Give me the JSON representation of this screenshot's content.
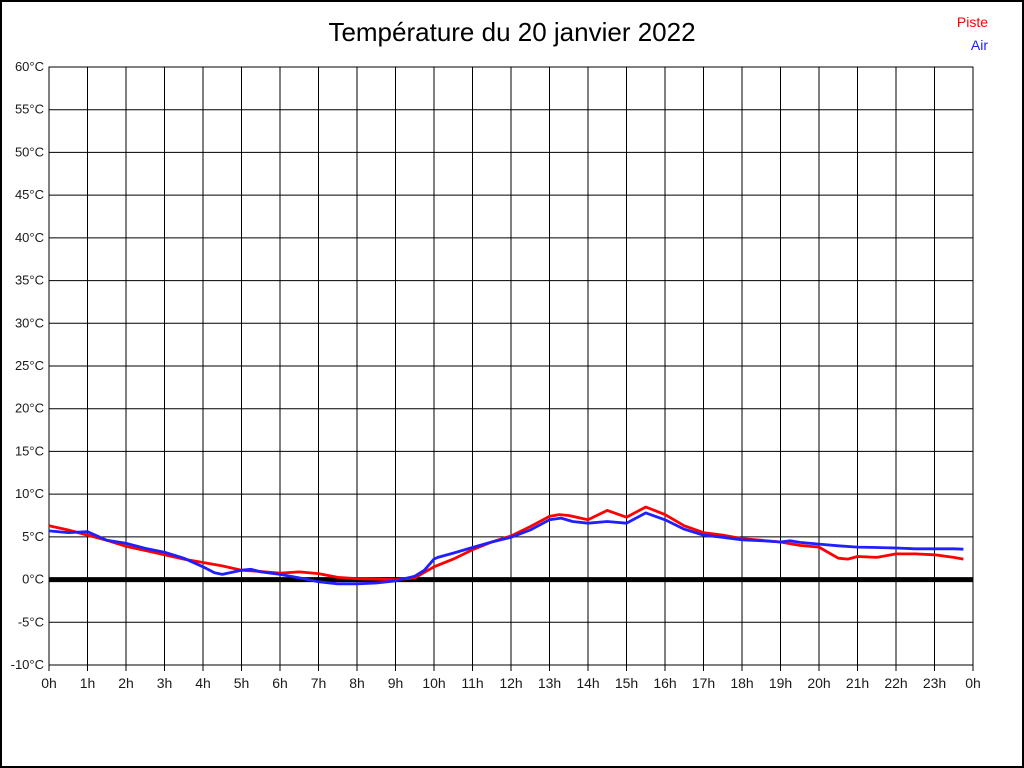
{
  "chart_data": {
    "type": "line",
    "title": "Température du 20 janvier 2022",
    "grid": "on",
    "legend_position": "top-right",
    "zero_line": true,
    "x_axis": {
      "unit": "h",
      "range": [
        0,
        24
      ],
      "tick_labels": [
        "0h",
        "1h",
        "2h",
        "3h",
        "4h",
        "5h",
        "6h",
        "7h",
        "8h",
        "9h",
        "10h",
        "11h",
        "12h",
        "13h",
        "14h",
        "15h",
        "16h",
        "17h",
        "18h",
        "19h",
        "20h",
        "21h",
        "22h",
        "23h",
        "0h"
      ]
    },
    "y_axis": {
      "unit": "°C",
      "range": [
        -10,
        60
      ],
      "step": 5,
      "tick_labels": [
        "60°C",
        "55°C",
        "50°C",
        "45°C",
        "40°C",
        "35°C",
        "30°C",
        "25°C",
        "20°C",
        "15°C",
        "10°C",
        "5°C",
        "0°C",
        "-5°C",
        "-10°C"
      ]
    },
    "series": [
      {
        "name": "Piste",
        "color": "#ff0000",
        "points": [
          [
            0,
            6.3
          ],
          [
            0.5,
            5.8
          ],
          [
            1,
            5.2
          ],
          [
            1.5,
            4.6
          ],
          [
            2,
            3.9
          ],
          [
            2.5,
            3.4
          ],
          [
            3,
            2.9
          ],
          [
            3.5,
            2.4
          ],
          [
            4,
            2.0
          ],
          [
            4.5,
            1.6
          ],
          [
            5,
            1.1
          ],
          [
            5.5,
            0.95
          ],
          [
            6,
            0.75
          ],
          [
            6.5,
            0.9
          ],
          [
            7,
            0.7
          ],
          [
            7.5,
            0.25
          ],
          [
            8,
            0.1
          ],
          [
            8.5,
            0.05
          ],
          [
            9,
            0.0
          ],
          [
            9.5,
            0.2
          ],
          [
            10,
            1.5
          ],
          [
            10.5,
            2.4
          ],
          [
            11,
            3.5
          ],
          [
            11.5,
            4.4
          ],
          [
            12,
            5.1
          ],
          [
            12.5,
            6.2
          ],
          [
            13,
            7.4
          ],
          [
            13.25,
            7.6
          ],
          [
            13.5,
            7.5
          ],
          [
            14,
            7.0
          ],
          [
            14.5,
            8.1
          ],
          [
            15,
            7.3
          ],
          [
            15.5,
            8.5
          ],
          [
            16,
            7.6
          ],
          [
            16.5,
            6.3
          ],
          [
            17,
            5.5
          ],
          [
            17.5,
            5.2
          ],
          [
            18,
            4.8
          ],
          [
            18.5,
            4.6
          ],
          [
            19,
            4.4
          ],
          [
            19.5,
            4.0
          ],
          [
            20,
            3.8
          ],
          [
            20.5,
            2.5
          ],
          [
            20.75,
            2.4
          ],
          [
            21,
            2.7
          ],
          [
            21.5,
            2.6
          ],
          [
            22,
            3.0
          ],
          [
            22.5,
            3.0
          ],
          [
            23,
            2.9
          ],
          [
            23.5,
            2.6
          ],
          [
            23.75,
            2.4
          ]
        ]
      },
      {
        "name": "Air",
        "color": "#2020ff",
        "points": [
          [
            0,
            5.7
          ],
          [
            0.5,
            5.5
          ],
          [
            1,
            5.6
          ],
          [
            1.5,
            4.6
          ],
          [
            2,
            4.25
          ],
          [
            2.5,
            3.65
          ],
          [
            3,
            3.2
          ],
          [
            3.5,
            2.5
          ],
          [
            4,
            1.5
          ],
          [
            4.3,
            0.8
          ],
          [
            4.5,
            0.6
          ],
          [
            5,
            1.1
          ],
          [
            5.25,
            1.2
          ],
          [
            5.5,
            0.9
          ],
          [
            6,
            0.6
          ],
          [
            6.5,
            0.2
          ],
          [
            7,
            -0.25
          ],
          [
            7.5,
            -0.5
          ],
          [
            8,
            -0.5
          ],
          [
            8.5,
            -0.4
          ],
          [
            9,
            -0.15
          ],
          [
            9.5,
            0.4
          ],
          [
            9.75,
            1.1
          ],
          [
            10,
            2.4
          ],
          [
            10.1,
            2.6
          ],
          [
            10.5,
            3.1
          ],
          [
            11,
            3.75
          ],
          [
            11.5,
            4.4
          ],
          [
            12,
            4.95
          ],
          [
            12.5,
            5.8
          ],
          [
            13,
            7.0
          ],
          [
            13.3,
            7.2
          ],
          [
            13.6,
            6.8
          ],
          [
            14,
            6.6
          ],
          [
            14.5,
            6.8
          ],
          [
            15,
            6.6
          ],
          [
            15.5,
            7.8
          ],
          [
            16,
            7.0
          ],
          [
            16.5,
            5.9
          ],
          [
            17,
            5.2
          ],
          [
            17.5,
            4.95
          ],
          [
            18,
            4.65
          ],
          [
            18.5,
            4.55
          ],
          [
            19,
            4.4
          ],
          [
            19.25,
            4.55
          ],
          [
            19.5,
            4.35
          ],
          [
            20,
            4.15
          ],
          [
            20.5,
            3.95
          ],
          [
            21,
            3.8
          ],
          [
            21.5,
            3.75
          ],
          [
            22,
            3.7
          ],
          [
            22.5,
            3.6
          ],
          [
            23,
            3.6
          ],
          [
            23.5,
            3.6
          ],
          [
            23.75,
            3.55
          ]
        ]
      }
    ],
    "styles": {
      "grid_color": "#000000",
      "text_color": "#1a1a1a",
      "zero_line_color": "#000000",
      "background": "#ffffff"
    }
  }
}
